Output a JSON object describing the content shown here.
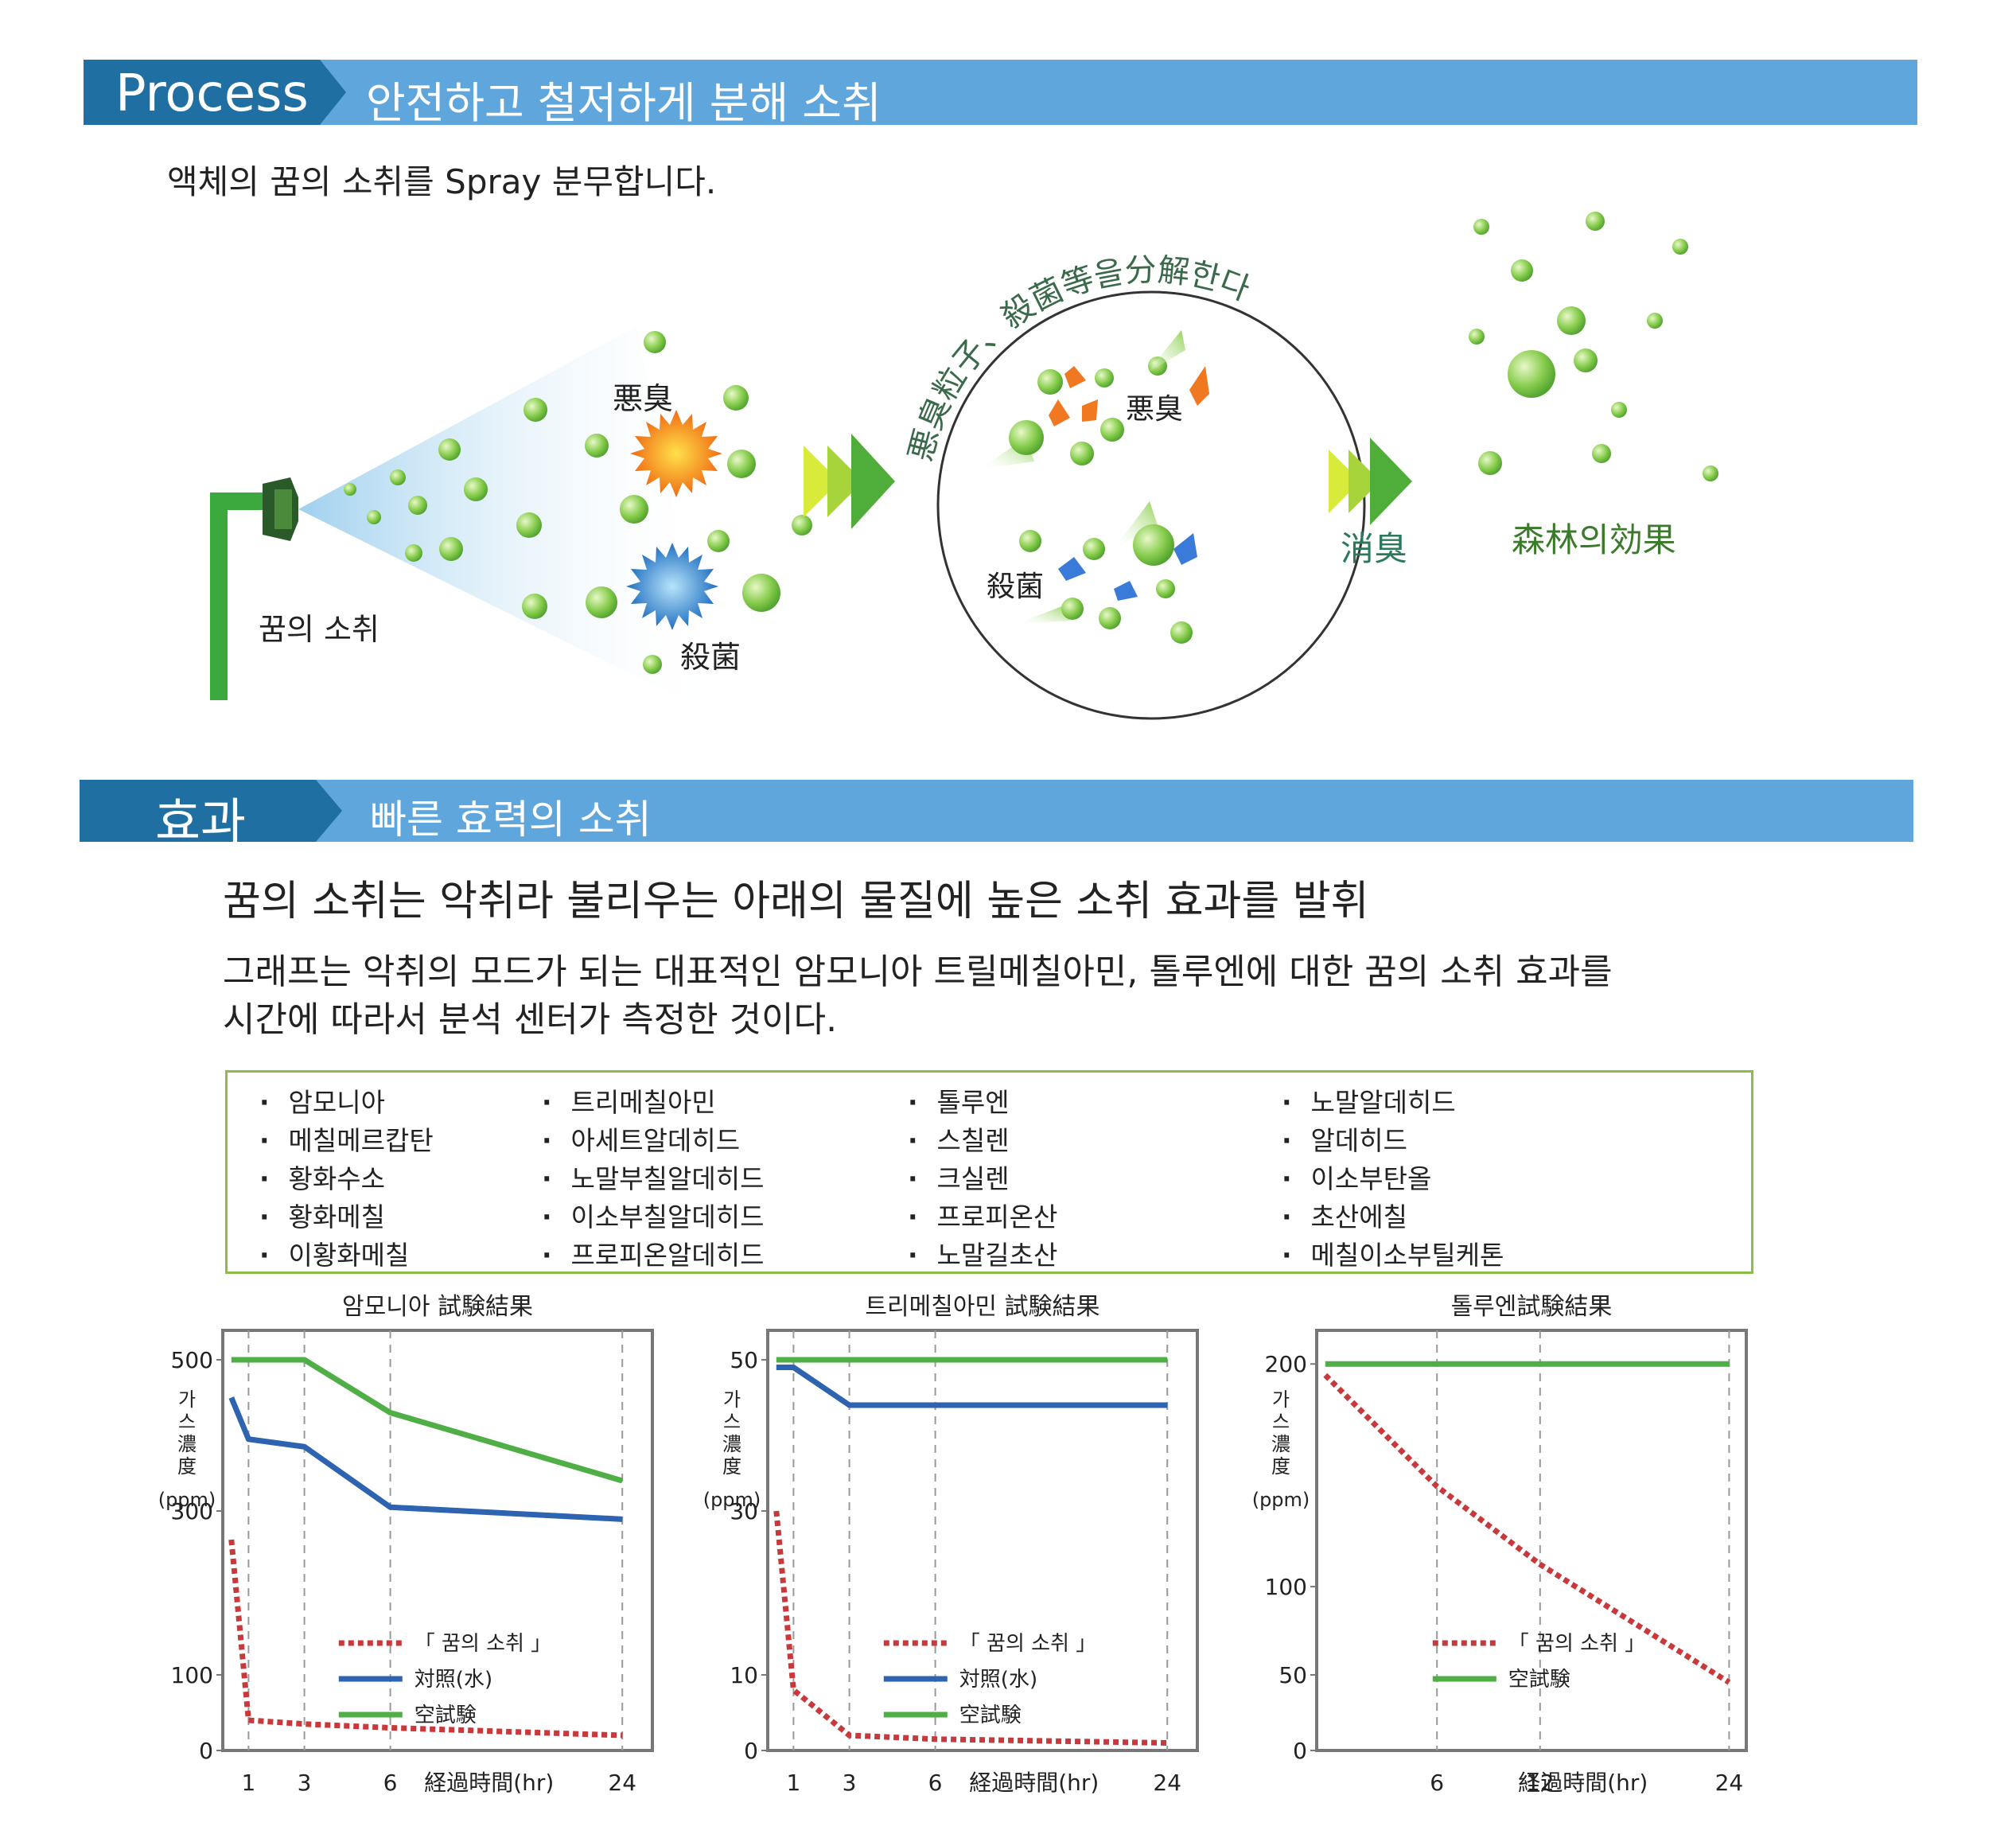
{
  "process": {
    "title": "Process",
    "subtitle": "안전하고 철저하게 분해 소취",
    "description": "액체의 꿈의 소취를 Spray 분무합니다.",
    "labels": {
      "nozzle": "꿈의 소취",
      "odor": "悪臭",
      "sterilize": "殺菌",
      "arc_text": "悪臭粒子、殺菌等을分解한다",
      "odor_in_circle": "悪臭",
      "sterilize_in_circle": "殺菌",
      "deodorize": "消臭",
      "forest_effect": "森林의効果"
    },
    "colors": {
      "bar": "#5fa6dc",
      "bar_dark": "#1f6fa3",
      "pipe": "#3aa83c",
      "bubble": "#7cc84a",
      "forest_text": "#3a7a2a",
      "deodorize_text": "#2a7a5a"
    }
  },
  "effect": {
    "title": "효과",
    "subtitle": "빠른 효력의 소취",
    "headline": "꿈의 소취는 악취라 불리우는 아래의 물질에 높은 소취 효과를 발휘",
    "body_line1": "그래프는 악취의 모드가 되는 대표적인 암모니아 트릴메칠아민, 톨루엔에 대한 꿈의 소취 효과를",
    "body_line2": "시간에 따라서 분석 센터가 측정한 것이다.",
    "substances": [
      [
        "암모니아",
        "메칠메르캅탄",
        "황화수소",
        "황화메칠",
        "이황화메칠"
      ],
      [
        "트리메칠아민",
        "아세트알데히드",
        "노말부칠알데히드",
        "이소부칠알데히드",
        "프로피온알데히드"
      ],
      [
        "톨루엔",
        "스칠렌",
        "크실렌",
        "프로피온산",
        "노말길초산"
      ],
      [
        "노말알데히드",
        "알데히드",
        "이소부탄올",
        "초산에칠",
        "메칠이소부틸케톤"
      ]
    ]
  },
  "chart_data": [
    {
      "type": "line",
      "title": "암모니아 試験結果",
      "ylabel": "가스濃度(ppm)",
      "xlabel": "経過時間(hr)",
      "x_ticks": [
        1,
        3,
        6,
        24
      ],
      "y_ticks": [
        0,
        100,
        300,
        500
      ],
      "series": [
        {
          "name": "「 꿈의 소취 」",
          "style": "dotted",
          "color": "#c8393b",
          "x": [
            0,
            1,
            3,
            6,
            24
          ],
          "y": [
            265,
            40,
            35,
            30,
            20
          ]
        },
        {
          "name": "対照(水)",
          "color": "#2d63b0",
          "x": [
            0,
            1,
            3,
            6,
            24
          ],
          "y": [
            450,
            395,
            385,
            305,
            290
          ]
        },
        {
          "name": "空試験",
          "color": "#4fae45",
          "x": [
            0,
            1,
            3,
            6,
            24
          ],
          "y": [
            500,
            500,
            500,
            430,
            340
          ]
        }
      ]
    },
    {
      "type": "line",
      "title": "트리메칠아민 試験結果",
      "ylabel": "가스濃度(ppm)",
      "xlabel": "経過時間(hr)",
      "x_ticks": [
        1,
        3,
        6,
        24
      ],
      "y_ticks": [
        0,
        10,
        30,
        50
      ],
      "series": [
        {
          "name": "「 꿈의 소취 」",
          "style": "dotted",
          "color": "#c8393b",
          "x": [
            0,
            1,
            3,
            6,
            24
          ],
          "y": [
            30,
            8,
            2,
            1.5,
            1
          ]
        },
        {
          "name": "対照(水)",
          "color": "#2d63b0",
          "x": [
            0,
            1,
            3,
            6,
            24
          ],
          "y": [
            49,
            49,
            44,
            44,
            44
          ]
        },
        {
          "name": "空試験",
          "color": "#4fae45",
          "x": [
            0,
            1,
            3,
            6,
            24
          ],
          "y": [
            50,
            50,
            50,
            50,
            50
          ]
        }
      ]
    },
    {
      "type": "line",
      "title": "톨루엔試験結果",
      "ylabel": "가스濃度(ppm)",
      "xlabel": "経過時間(hr)",
      "x_ticks": [
        6,
        12,
        24
      ],
      "y_ticks": [
        0,
        50,
        100,
        200
      ],
      "series": [
        {
          "name": "「 꿈의 소취 」",
          "style": "dotted",
          "color": "#c8393b",
          "x": [
            0,
            6,
            12,
            24
          ],
          "y": [
            195,
            145,
            110,
            45
          ]
        },
        {
          "name": "空試験",
          "color": "#4fae45",
          "x": [
            0,
            6,
            12,
            24
          ],
          "y": [
            200,
            200,
            200,
            200
          ]
        }
      ]
    }
  ]
}
